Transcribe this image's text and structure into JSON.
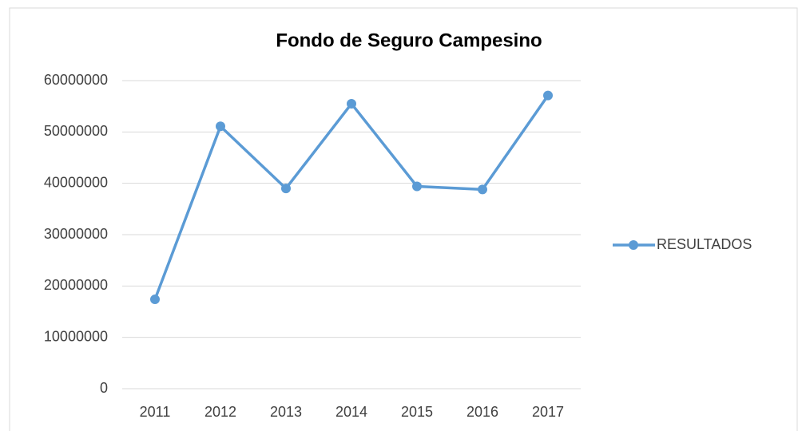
{
  "chart_data": {
    "type": "line",
    "title": "Fondo de Seguro Campesino",
    "categories": [
      "2011",
      "2012",
      "2013",
      "2014",
      "2015",
      "2016",
      "2017"
    ],
    "series": [
      {
        "name": "RESULTADOS",
        "color": "#5b9bd5",
        "values": [
          17400000,
          51100000,
          39000000,
          55500000,
          39400000,
          38800000,
          57100000
        ]
      }
    ],
    "ylim": [
      0,
      60000000
    ],
    "yticks": [
      0,
      10000000,
      20000000,
      30000000,
      40000000,
      50000000,
      60000000
    ],
    "grid": true,
    "legend": "right"
  }
}
